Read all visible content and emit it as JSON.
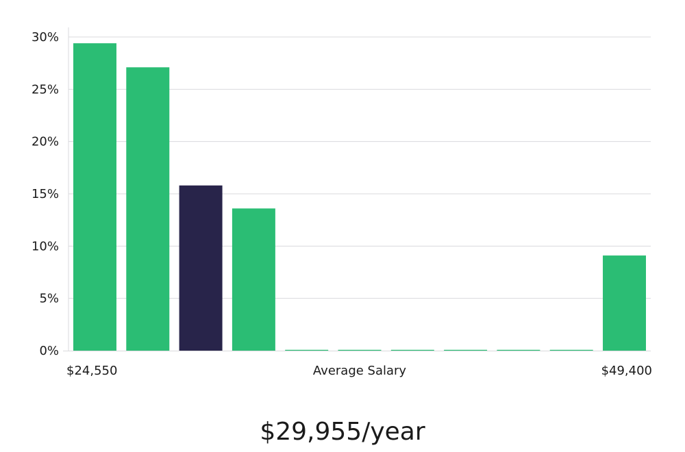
{
  "chart_data": {
    "type": "bar",
    "title": "",
    "xlabel": "Average Salary",
    "ylabel": "",
    "ylim": [
      0,
      30
    ],
    "yticks": [
      "0%",
      "5%",
      "10%",
      "15%",
      "20%",
      "25%",
      "30%"
    ],
    "ytick_values": [
      0,
      5,
      10,
      15,
      20,
      25,
      30
    ],
    "x_min_label": "$24,550",
    "x_max_label": "$49,400",
    "values": [
      29.4,
      27.1,
      15.8,
      13.6,
      0.05,
      0.05,
      0.05,
      0.05,
      0.05,
      0.05,
      9.1
    ],
    "highlight_index": 2,
    "bar_color": "#2bbd74",
    "highlight_color": "#28244a",
    "grid": true
  },
  "summary": {
    "salary_text": "$29,955/year"
  }
}
